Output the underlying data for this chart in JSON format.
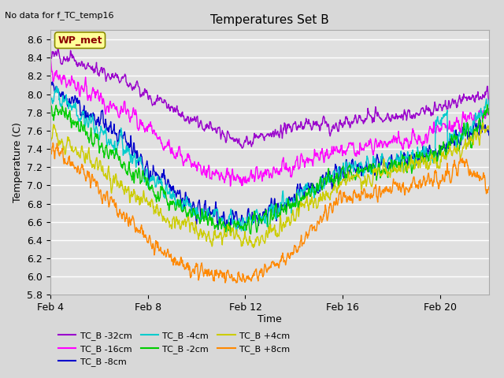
{
  "title": "Temperatures Set B",
  "subtitle": "No data for f_TC_temp16",
  "ylabel": "Temperature (C)",
  "xlabel": "Time",
  "ylim": [
    5.8,
    8.7
  ],
  "xlim_days": [
    0,
    18
  ],
  "xtick_labels": [
    "Feb 4",
    "Feb 8",
    "Feb 12",
    "Feb 16",
    "Feb 20"
  ],
  "xtick_positions": [
    0,
    4,
    8,
    12,
    16
  ],
  "background_color": "#d8d8d8",
  "plot_background": "#e0e0e0",
  "legend_items": [
    {
      "label": "TC_B -32cm",
      "color": "#9900cc"
    },
    {
      "label": "TC_B -16cm",
      "color": "#ff00ff"
    },
    {
      "label": "TC_B -8cm",
      "color": "#0000cc"
    },
    {
      "label": "TC_B -4cm",
      "color": "#00cccc"
    },
    {
      "label": "TC_B -2cm",
      "color": "#00cc00"
    },
    {
      "label": "TC_B +4cm",
      "color": "#cccc00"
    },
    {
      "label": "TC_B +8cm",
      "color": "#ff8800"
    }
  ],
  "annotation_text": "WP_met",
  "annotation_color": "#8b0000",
  "annotation_bg": "#ffff99",
  "n_points": 1200
}
